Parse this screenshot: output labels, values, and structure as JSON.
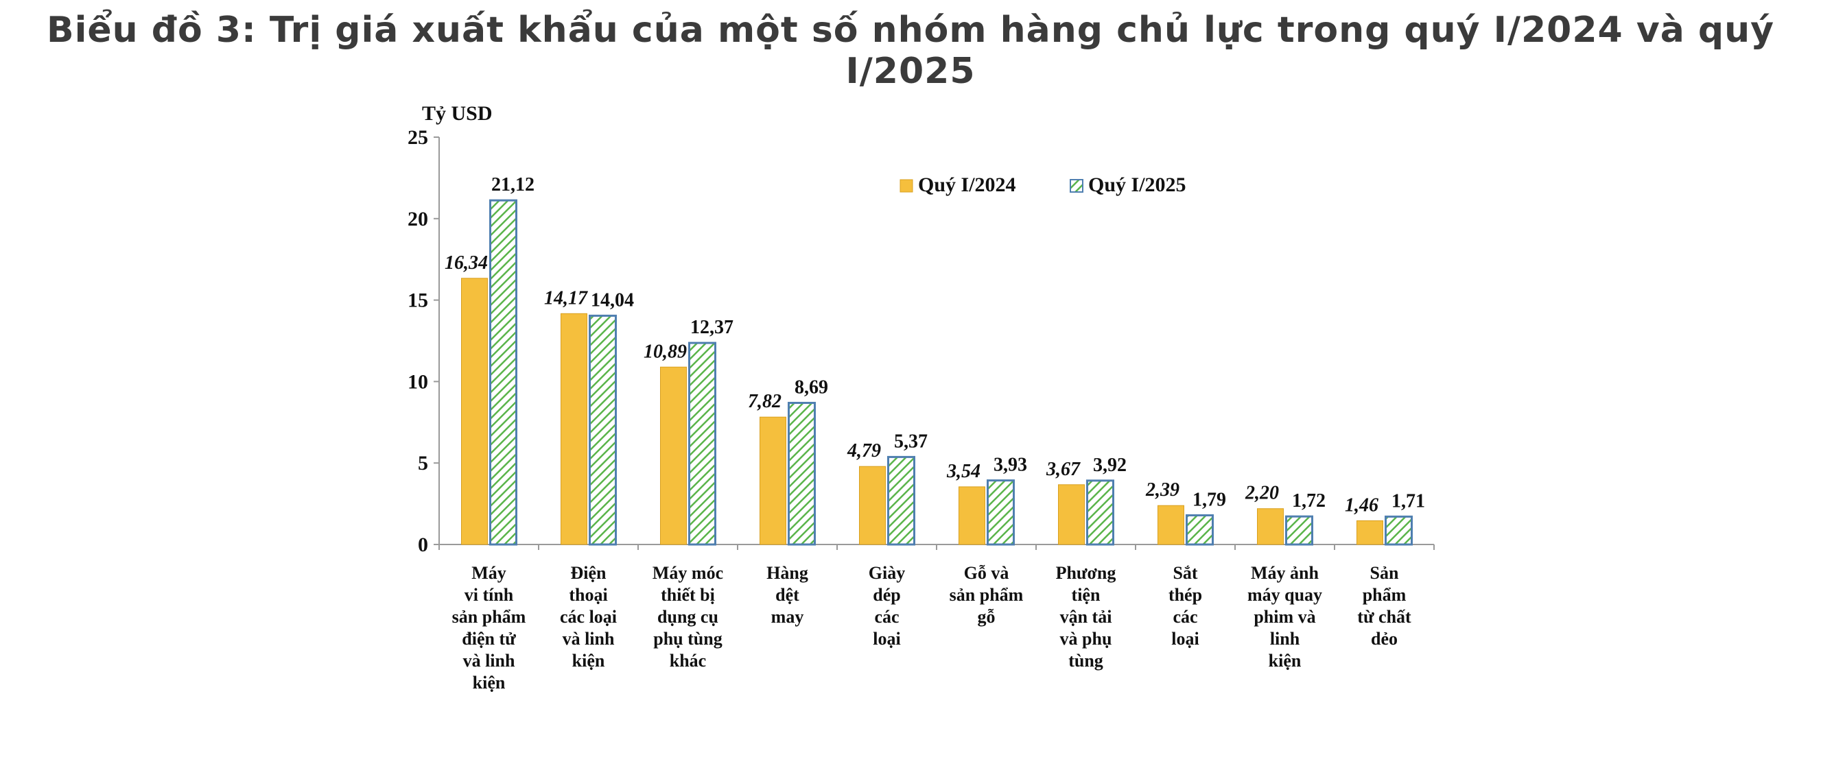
{
  "title": "Biểu đồ 3: Trị giá xuất khẩu của một số nhóm hàng chủ lực trong quý I/2024 và quý I/2025",
  "colors": {
    "series1": "#f5bf3d",
    "series1_border": "#d9a020",
    "series2_fill": "#ffffff",
    "series2_hatch": "#5ab44a",
    "series2_border": "#4f7fb0",
    "axis": "#9a9a9a",
    "text": "#111111"
  },
  "chart_data": {
    "type": "bar",
    "title": "",
    "ylabel": "Tỷ USD",
    "xlabel": "",
    "ylim": [
      0,
      25
    ],
    "yticks": [
      0,
      5,
      10,
      15,
      20,
      25
    ],
    "grid": false,
    "legend_position": "top-right",
    "categories": [
      [
        "Máy",
        "vi tính",
        "sản phẩm",
        "điện tử",
        "và linh",
        "kiện"
      ],
      [
        "Điện",
        "thoại",
        "các loại",
        "và linh",
        "kiện"
      ],
      [
        "Máy móc",
        "thiết bị",
        "dụng cụ",
        "phụ tùng",
        "khác"
      ],
      [
        "Hàng",
        "dệt",
        "may"
      ],
      [
        "Giày",
        "dép",
        "các",
        "loại"
      ],
      [
        "Gỗ và",
        "sản phẩm",
        "gỗ"
      ],
      [
        "Phương",
        "tiện",
        "vận tải",
        "và phụ",
        "tùng"
      ],
      [
        "Sắt",
        "thép",
        "các",
        "loại"
      ],
      [
        "Máy ảnh",
        "máy quay",
        "phim và",
        "linh",
        "kiện"
      ],
      [
        "Sản",
        "phẩm",
        "từ chất",
        "dẻo"
      ]
    ],
    "series": [
      {
        "name": "Quý I/2024",
        "values": [
          16.34,
          14.17,
          10.89,
          7.82,
          4.79,
          3.54,
          3.67,
          2.39,
          2.2,
          1.46
        ],
        "labels": [
          "16,34",
          "14,17",
          "10,89",
          "7,82",
          "4,79",
          "3,54",
          "3,67",
          "2,39",
          "2,20",
          "1,46"
        ]
      },
      {
        "name": "Quý I/2025",
        "values": [
          21.12,
          14.04,
          12.37,
          8.69,
          5.37,
          3.93,
          3.92,
          1.79,
          1.72,
          1.71
        ],
        "labels": [
          "21,12",
          "14,04",
          "12,37",
          "8,69",
          "5,37",
          "3,93",
          "3,92",
          "1,79",
          "1,72",
          "1,71"
        ]
      }
    ]
  }
}
